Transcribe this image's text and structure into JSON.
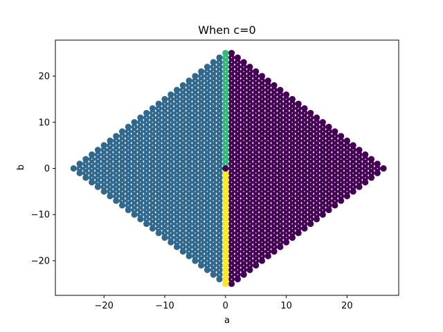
{
  "chart_data": {
    "type": "scatter",
    "title": "When c=0",
    "xlabel": "a",
    "ylabel": "b",
    "xlim": [
      -28,
      28.5
    ],
    "ylim": [
      -27.5,
      27.8
    ],
    "xticks": [
      -20,
      -10,
      0,
      10,
      20
    ],
    "yticks": [
      -20,
      -10,
      0,
      10,
      20
    ],
    "xtick_labels": [
      "−20",
      "−10",
      "0",
      "10",
      "20"
    ],
    "ytick_labels": [
      "−20",
      "−10",
      "0",
      "10",
      "20"
    ],
    "grid": false,
    "legend": false,
    "description_of_points": "Integer lattice of (a, b) points forming a diamond; colored by region",
    "series": [
      {
        "region": "left (a < 0)",
        "color": "#31688e",
        "rule": "a from -25 to -1, |a| + |b| <= 25"
      },
      {
        "region": "right (a > 0) and origin",
        "color": "#440154",
        "rule": "a from 0 to 26, |a| + |b| <= 26 (excluding a = 0, b != 0)"
      },
      {
        "region": "a = 0, b > 0",
        "color": "#35b779",
        "rule": "b from 1 to 25"
      },
      {
        "region": "a = 0, b < 0",
        "color": "#fde725",
        "rule": "b from -25 to -1"
      }
    ]
  },
  "colors": {
    "left": "#31688e",
    "right": "#440154",
    "top_axis": "#35b779",
    "bottom_axis": "#fde725",
    "interior_dot": "#ffffff"
  }
}
